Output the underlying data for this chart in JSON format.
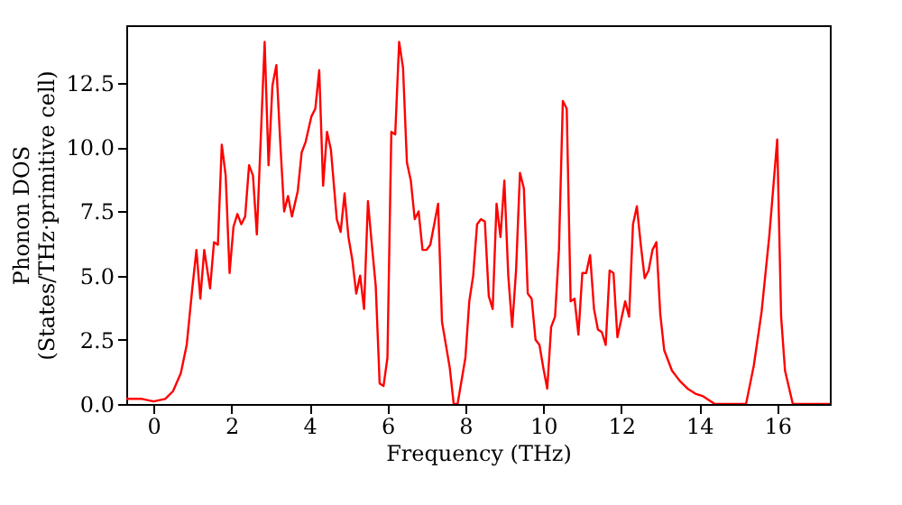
{
  "chart_data": {
    "type": "line",
    "xlabel": "Frequency (THz)",
    "ylabel": "Phonon DOS\n(States/THz·primitive cell)",
    "xlim": [
      -0.7,
      17.35
    ],
    "ylim": [
      0,
      14.75
    ],
    "xticks": [
      0,
      2,
      4,
      6,
      8,
      10,
      12,
      14,
      16
    ],
    "yticks": [
      {
        "value": 0,
        "label": "0.0"
      },
      {
        "value": 2.5,
        "label": "2.5"
      },
      {
        "value": 5,
        "label": "5.0"
      },
      {
        "value": 7.5,
        "label": "7.5"
      },
      {
        "value": 10,
        "label": "10.0"
      },
      {
        "value": 12.5,
        "label": "12.5"
      }
    ],
    "grid": false,
    "line_style": "solid",
    "marker": "none",
    "series": [
      {
        "color": "#ff0000",
        "x": [
          -0.7,
          -0.3,
          0,
          0.3,
          0.5,
          0.7,
          0.85,
          1.0,
          1.1,
          1.2,
          1.3,
          1.45,
          1.55,
          1.65,
          1.75,
          1.85,
          1.95,
          2.05,
          2.15,
          2.25,
          2.35,
          2.45,
          2.55,
          2.65,
          2.85,
          2.95,
          3.05,
          3.15,
          3.25,
          3.35,
          3.45,
          3.55,
          3.7,
          3.8,
          3.9,
          4.05,
          4.15,
          4.25,
          4.35,
          4.45,
          4.55,
          4.7,
          4.8,
          4.9,
          5.0,
          5.1,
          5.2,
          5.3,
          5.4,
          5.5,
          5.6,
          5.7,
          5.8,
          5.9,
          6.0,
          6.1,
          6.2,
          6.3,
          6.4,
          6.5,
          6.6,
          6.7,
          6.8,
          6.9,
          7.0,
          7.1,
          7.2,
          7.3,
          7.4,
          7.6,
          7.7,
          7.8,
          8.0,
          8.1,
          8.2,
          8.3,
          8.4,
          8.5,
          8.6,
          8.7,
          8.8,
          8.9,
          9.0,
          9.1,
          9.2,
          9.3,
          9.4,
          9.5,
          9.6,
          9.7,
          9.8,
          9.9,
          10.0,
          10.1,
          10.2,
          10.3,
          10.4,
          10.5,
          10.6,
          10.7,
          10.8,
          10.9,
          11.0,
          11.1,
          11.2,
          11.3,
          11.4,
          11.5,
          11.6,
          11.7,
          11.8,
          11.9,
          12.0,
          12.1,
          12.2,
          12.3,
          12.4,
          12.5,
          12.6,
          12.7,
          12.8,
          12.9,
          13.0,
          13.1,
          13.3,
          13.5,
          13.7,
          13.9,
          14.1,
          14.3,
          14.4,
          15.2,
          15.4,
          15.6,
          15.8,
          16.0,
          16.1,
          16.2,
          16.4,
          17.35
        ],
        "values": [
          0.2,
          0.2,
          0.1,
          0.2,
          0.5,
          1.2,
          2.3,
          4.6,
          6.0,
          4.1,
          6.0,
          4.5,
          6.3,
          6.2,
          10.1,
          8.9,
          5.1,
          6.9,
          7.4,
          7.0,
          7.3,
          9.3,
          8.9,
          6.6,
          14.1,
          9.3,
          12.4,
          13.2,
          10.2,
          7.5,
          8.1,
          7.3,
          8.3,
          9.8,
          10.2,
          11.2,
          11.5,
          13.0,
          8.5,
          10.6,
          9.9,
          7.2,
          6.7,
          8.2,
          6.5,
          5.6,
          4.3,
          5.0,
          3.7,
          7.9,
          6.2,
          4.6,
          0.8,
          0.7,
          1.8,
          10.6,
          10.5,
          14.1,
          13.1,
          9.4,
          8.7,
          7.2,
          7.5,
          6.0,
          6.0,
          6.2,
          7.0,
          7.8,
          3.2,
          1.4,
          0.0,
          0.0,
          1.8,
          4.0,
          5.0,
          7.0,
          7.2,
          7.1,
          4.2,
          3.7,
          7.8,
          6.5,
          8.7,
          5.0,
          3.0,
          5.2,
          9.0,
          8.4,
          4.3,
          4.1,
          2.5,
          2.3,
          1.4,
          0.6,
          3.0,
          3.4,
          6.0,
          11.8,
          11.5,
          4.0,
          4.1,
          2.7,
          5.1,
          5.1,
          5.8,
          3.7,
          2.9,
          2.8,
          2.3,
          5.2,
          5.1,
          2.6,
          3.3,
          4.0,
          3.4,
          7.0,
          7.7,
          6.2,
          4.9,
          5.2,
          6.0,
          6.3,
          3.5,
          2.1,
          1.3,
          0.9,
          0.6,
          0.4,
          0.3,
          0.1,
          0.0,
          0.0,
          1.5,
          3.6,
          6.6,
          10.3,
          3.4,
          1.3,
          0.0,
          0.0
        ]
      }
    ]
  }
}
